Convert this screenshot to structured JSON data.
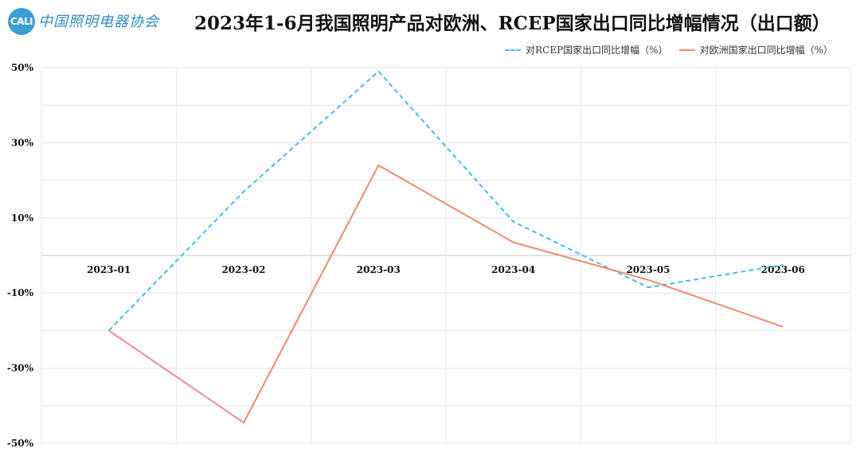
{
  "header": {
    "logo_mark": "CALI",
    "logo_text": "中国照明电器协会"
  },
  "chart_data": {
    "type": "line",
    "title": "2023年1-6月我国照明产品对欧洲、RCEP国家出口同比增幅情况（出口额）",
    "categories": [
      "2023-01",
      "2023-02",
      "2023-03",
      "2023-04",
      "2023-05",
      "2023-06"
    ],
    "y_ticks": [
      "50%",
      "30%",
      "10%",
      "-10%",
      "-30%",
      "-50%"
    ],
    "ylim": [
      -50,
      50
    ],
    "xlabel": "",
    "ylabel": "",
    "grid": true,
    "legend_position": "top-right",
    "series": [
      {
        "name": "对RCEP国家出口同比增幅（%）",
        "values": [
          -20,
          17,
          49,
          9,
          -8.5,
          -2.5
        ],
        "color": "#45bde6",
        "dashed": true
      },
      {
        "name": "对欧洲国家出口同比增幅（%）",
        "values": [
          -20,
          -44.5,
          24,
          3.5,
          -6.5,
          -19
        ],
        "color": "#f4886b",
        "dashed": false
      }
    ]
  }
}
